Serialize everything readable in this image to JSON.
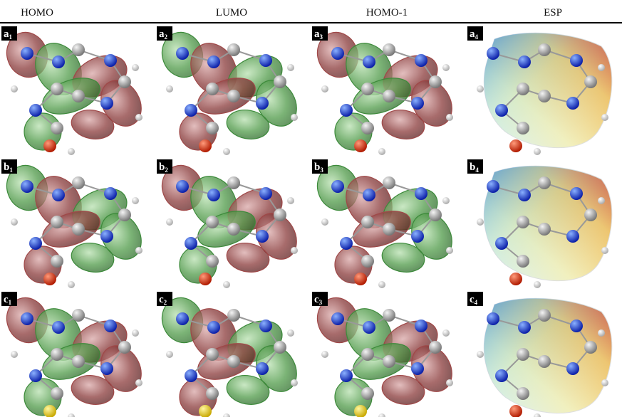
{
  "header": {
    "columns": [
      "HOMO",
      "LUMO",
      "HOMO-1",
      "ESP"
    ]
  },
  "panels": [
    [
      {
        "letter": "a",
        "index": "1"
      },
      {
        "letter": "a",
        "index": "2"
      },
      {
        "letter": "a",
        "index": "3"
      },
      {
        "letter": "a",
        "index": "4"
      }
    ],
    [
      {
        "letter": "b",
        "index": "1"
      },
      {
        "letter": "b",
        "index": "2"
      },
      {
        "letter": "b",
        "index": "3"
      },
      {
        "letter": "b",
        "index": "4"
      }
    ],
    [
      {
        "letter": "c",
        "index": "1"
      },
      {
        "letter": "c",
        "index": "2"
      },
      {
        "letter": "c",
        "index": "3"
      },
      {
        "letter": "c",
        "index": "4"
      }
    ]
  ]
}
